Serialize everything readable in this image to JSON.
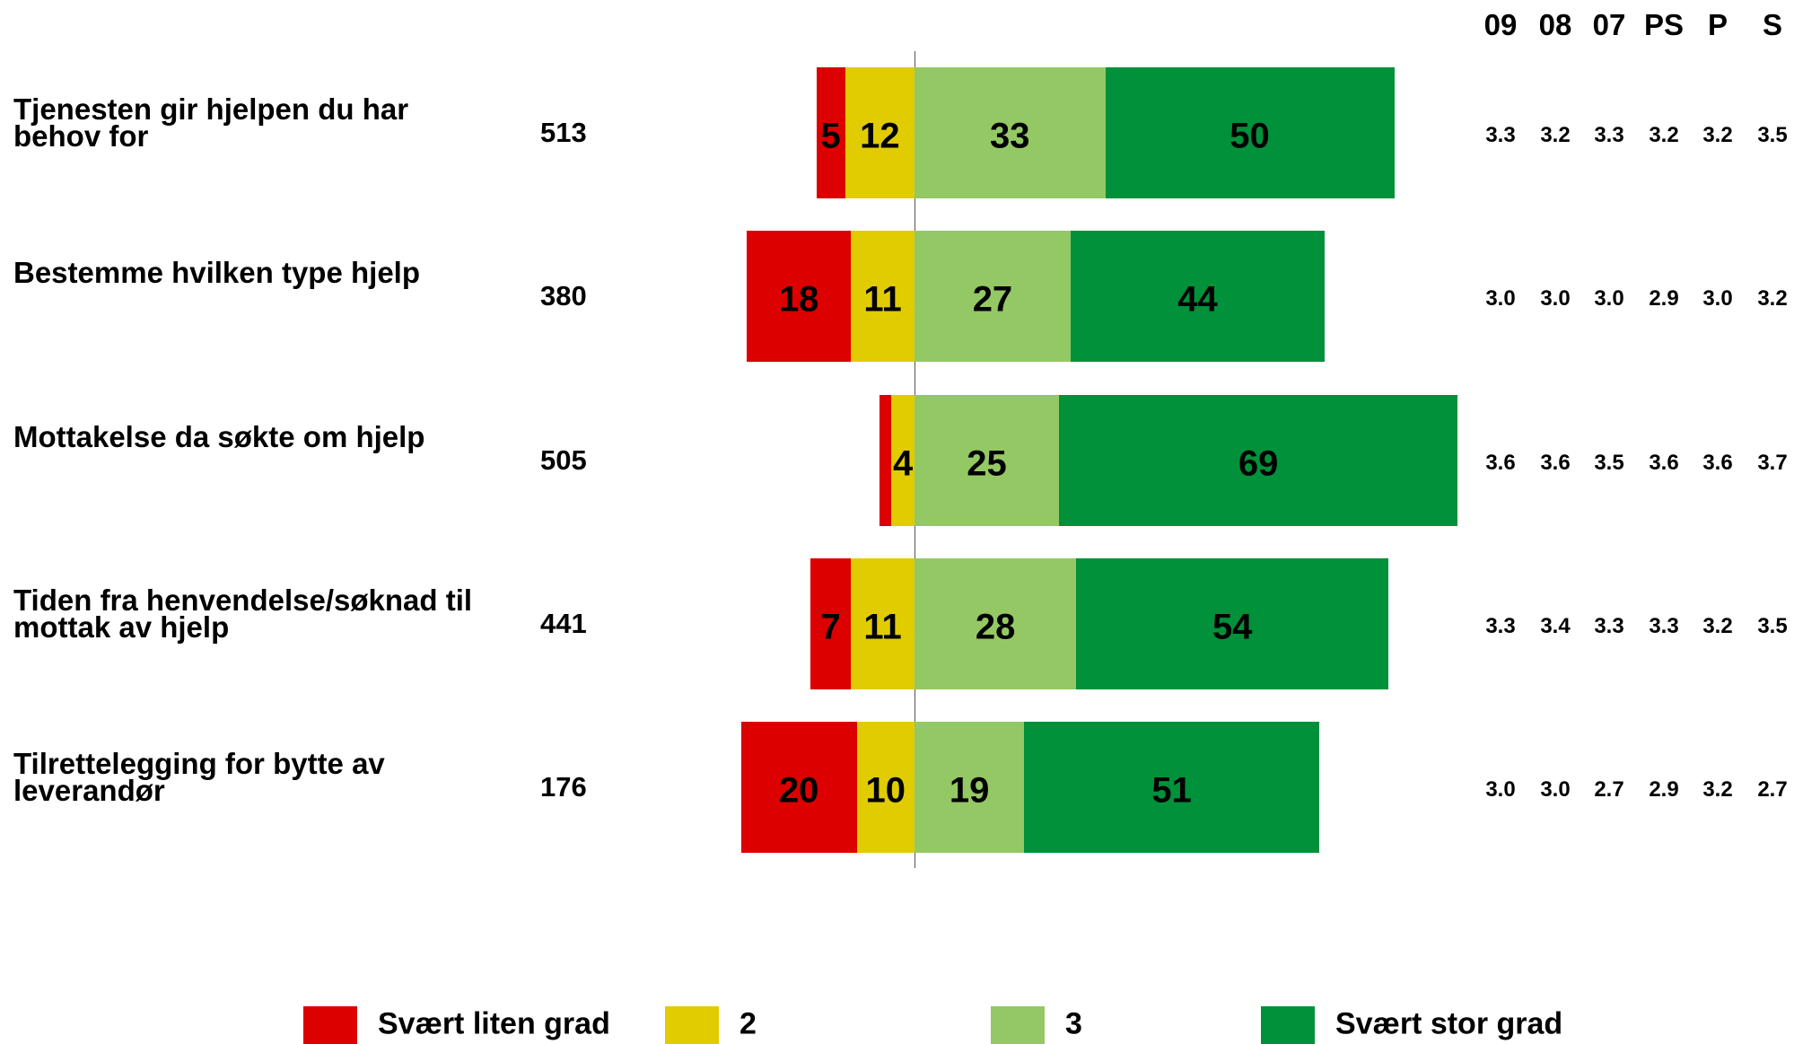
{
  "chart_data": {
    "type": "diverging-bar",
    "categories": [
      "Tjenesten gir hjelpen du har behov for",
      "Bestemme hvilken type hjelp",
      "Mottakelse da søkte om hjelp",
      "Tiden fra henvendelse/søknad til mottak av hjelp",
      "Tilrettelegging for bytte av leverandør"
    ],
    "n": [
      513,
      380,
      505,
      441,
      176
    ],
    "series": [
      {
        "name": "Svært liten grad",
        "color": "#dc0000",
        "values": [
          5,
          18,
          2,
          7,
          20
        ],
        "value_labels": [
          5,
          18,
          null,
          7,
          20
        ]
      },
      {
        "name": "2",
        "color": "#e0cc00",
        "values": [
          12,
          11,
          4,
          11,
          10
        ]
      },
      {
        "name": "3",
        "color": "#94c864",
        "values": [
          33,
          27,
          25,
          28,
          19
        ]
      },
      {
        "name": "Svært stor grad",
        "color": "#00913a",
        "values": [
          50,
          44,
          69,
          54,
          51
        ]
      }
    ],
    "score_columns": [
      "09",
      "08",
      "07",
      "PS",
      "P",
      "S"
    ],
    "scores": [
      [
        "3.3",
        "3.2",
        "3.3",
        "3.2",
        "3.2",
        "3.5"
      ],
      [
        "3.0",
        "3.0",
        "3.0",
        "2.9",
        "3.0",
        "3.2"
      ],
      [
        "3.6",
        "3.6",
        "3.5",
        "3.6",
        "3.6",
        "3.7"
      ],
      [
        "3.3",
        "3.4",
        "3.3",
        "3.3",
        "3.2",
        "3.5"
      ],
      [
        "3.0",
        "3.0",
        "2.7",
        "2.9",
        "3.2",
        "2.7"
      ]
    ]
  }
}
